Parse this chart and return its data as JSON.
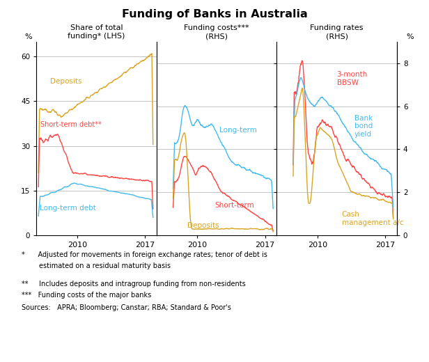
{
  "title": "Funding of Banks in Australia",
  "panel1_title": "Share of total\nfunding* (LHS)",
  "panel2_title": "Funding costs***\n(RHS)",
  "panel3_title": "Funding rates\n(RHS)",
  "ylabel_left": "%",
  "ylabel_right": "%",
  "ylim_left": [
    0,
    65
  ],
  "ylim_right": [
    0,
    9
  ],
  "yticks_left": [
    0,
    15,
    30,
    45,
    60
  ],
  "yticks_right": [
    0,
    2,
    4,
    6,
    8
  ],
  "xticks": [
    2010,
    2017
  ],
  "footnote_lines": [
    "*      Adjusted for movements in foreign exchange rates; tenor of debt is",
    "        estimated on a residual maturity basis",
    "**     Includes deposits and intragroup funding from non-residents",
    "***   Funding costs of the major banks",
    "Sources:   APRA; Bloomberg; Canstar; RBA; Standard & Poor's"
  ],
  "color_deposits": "#DAA520",
  "color_short_term": "#FF4444",
  "color_long_term": "#44BBEE",
  "grid_color": "#BBBBBB",
  "background": "#FFFFFF"
}
